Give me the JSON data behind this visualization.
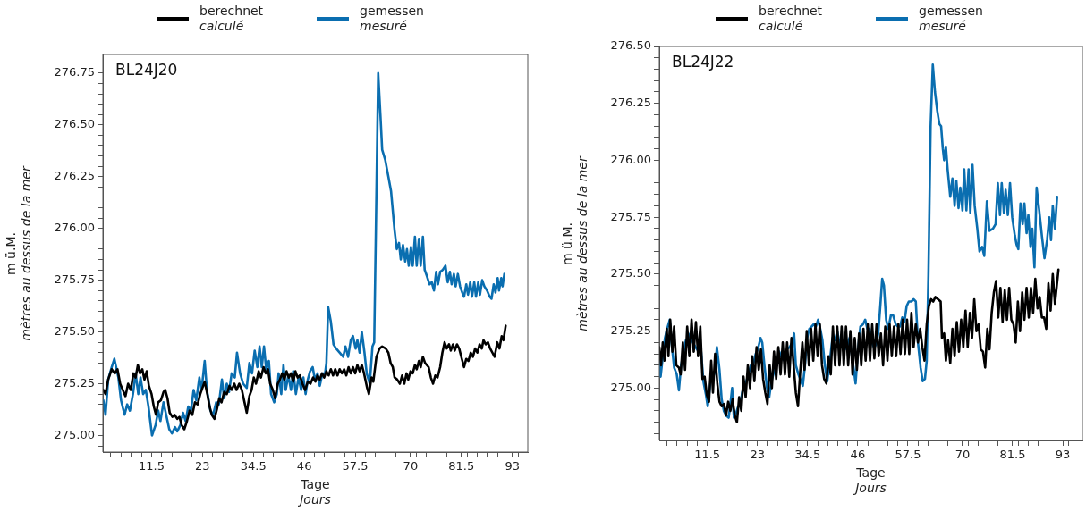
{
  "chart_data": [
    {
      "type": "line",
      "title": "BL24J20",
      "xlabel": "Tage\nJours",
      "ylabel": "m ü.M.\nmètres au dessus de la mer",
      "legend": "top",
      "grid": false,
      "marker": "none",
      "line_style": "solid",
      "xlim": [
        0.5,
        96.5
      ],
      "ylim": [
        274.92,
        276.84
      ],
      "xticks": [
        {
          "value": 2.3,
          "label": null
        },
        {
          "value": 4.6,
          "label": null
        },
        {
          "value": 6.9,
          "label": null
        },
        {
          "value": 9.2,
          "label": null
        },
        11.5,
        {
          "value": 13.8,
          "label": null
        },
        {
          "value": 16.1,
          "label": null
        },
        {
          "value": 18.4,
          "label": null
        },
        {
          "value": 20.7,
          "label": null
        },
        23,
        {
          "value": 25.3,
          "label": null
        },
        {
          "value": 27.6,
          "label": null
        },
        {
          "value": 29.9,
          "label": null
        },
        {
          "value": 32.2,
          "label": null
        },
        34.5,
        {
          "value": 36.8,
          "label": null
        },
        {
          "value": 39.1,
          "label": null
        },
        {
          "value": 41.4,
          "label": null
        },
        {
          "value": 43.7,
          "label": null
        },
        46,
        {
          "value": 48.3,
          "label": null
        },
        {
          "value": 50.6,
          "label": null
        },
        {
          "value": 52.9,
          "label": null
        },
        {
          "value": 55.2,
          "label": null
        },
        57.5,
        {
          "value": 59.8,
          "label": null
        },
        {
          "value": 62.1,
          "label": null
        },
        {
          "value": 64.4,
          "label": null
        },
        {
          "value": 66.7,
          "label": null
        },
        70,
        {
          "value": 71.3,
          "label": null
        },
        {
          "value": 73.6,
          "label": null
        },
        {
          "value": 75.9,
          "label": null
        },
        {
          "value": 78.2,
          "label": null
        },
        81.5,
        {
          "value": 82.8,
          "label": null
        },
        {
          "value": 85.1,
          "label": null
        },
        {
          "value": 87.4,
          "label": null
        },
        {
          "value": 89.7,
          "label": null
        },
        93,
        {
          "value": 94.3,
          "label": null
        }
      ],
      "yticks": [
        {
          "value": 274.95,
          "label": null
        },
        {
          "value": 275,
          "label": "275.00"
        },
        {
          "value": 275.05,
          "label": null
        },
        {
          "value": 275.1,
          "label": null
        },
        {
          "value": 275.15,
          "label": null
        },
        {
          "value": 275.2,
          "label": null
        },
        {
          "value": 275.25,
          "label": "275.25"
        },
        {
          "value": 275.3,
          "label": null
        },
        {
          "value": 275.35,
          "label": null
        },
        {
          "value": 275.4,
          "label": null
        },
        {
          "value": 275.45,
          "label": null
        },
        {
          "value": 275.5,
          "label": "275.50"
        },
        {
          "value": 275.55,
          "label": null
        },
        {
          "value": 275.6,
          "label": null
        },
        {
          "value": 275.65,
          "label": null
        },
        {
          "value": 275.7,
          "label": null
        },
        {
          "value": 275.75,
          "label": "275.75"
        },
        {
          "value": 275.8,
          "label": null
        },
        {
          "value": 275.85,
          "label": null
        },
        {
          "value": 275.9,
          "label": null
        },
        {
          "value": 275.95,
          "label": null
        },
        {
          "value": 276,
          "label": "276.00"
        },
        {
          "value": 276.05,
          "label": null
        },
        {
          "value": 276.1,
          "label": null
        },
        {
          "value": 276.15,
          "label": null
        },
        {
          "value": 276.2,
          "label": null
        },
        {
          "value": 276.25,
          "label": "276.25"
        },
        {
          "value": 276.3,
          "label": null
        },
        {
          "value": 276.35,
          "label": null
        },
        {
          "value": 276.4,
          "label": null
        },
        {
          "value": 276.45,
          "label": null
        },
        {
          "value": 276.5,
          "label": "276.50"
        },
        {
          "value": 276.55,
          "label": null
        },
        {
          "value": 276.6,
          "label": null
        },
        {
          "value": 276.65,
          "label": null
        },
        {
          "value": 276.7,
          "label": null
        },
        {
          "value": 276.75,
          "label": "276.75"
        },
        {
          "value": 276.8,
          "label": null
        }
      ],
      "series": [
        {
          "name": "berechnet\ncalculé",
          "color": "#000000",
          "x": [
            0.6,
            1.1,
            1.7,
            2.5,
            3.2,
            3.8,
            4.4,
            5.0,
            5.6,
            6.2,
            6.8,
            7.4,
            7.9,
            8.4,
            8.9,
            9.4,
            9.9,
            10.4,
            10.9,
            11.5,
            12.0,
            12.5,
            13.0,
            13.6,
            14.2,
            14.6,
            15.1,
            15.6,
            16.2,
            16.7,
            17.3,
            17.8,
            18.3,
            18.9,
            19.5,
            20.1,
            20.7,
            21.3,
            21.9,
            22.5,
            23.0,
            23.5,
            24.1,
            24.6,
            25.1,
            25.7,
            26.3,
            26.8,
            27.3,
            27.9,
            28.5,
            29.1,
            29.6,
            30.2,
            30.7,
            31.3,
            31.9,
            32.5,
            33.0,
            33.6,
            34.1,
            34.6,
            35.1,
            35.7,
            36.2,
            36.8,
            37.3,
            37.8,
            38.3,
            38.9,
            39.4,
            40.0,
            40.5,
            41.0,
            41.5,
            42.0,
            42.5,
            43.0,
            43.5,
            44.0,
            44.5,
            45.0,
            45.6,
            46.2,
            46.8,
            47.4,
            48.0,
            48.5,
            49.0,
            49.5,
            50.0,
            50.5,
            51.0,
            51.5,
            52.0,
            52.5,
            53.0,
            53.5,
            54.0,
            54.5,
            55.0,
            55.5,
            56.0,
            56.5,
            57.0,
            57.5,
            58.0,
            58.5,
            59.0,
            59.5,
            60.2,
            60.6,
            61.2,
            61.6,
            62.3,
            63.0,
            63.6,
            64.4,
            65.0,
            65.5,
            66.0,
            66.4,
            67.0,
            67.6,
            68.1,
            68.6,
            69.1,
            69.5,
            70.0,
            70.5,
            71.0,
            71.4,
            71.9,
            72.3,
            72.8,
            73.3,
            74.1,
            74.6,
            75.1,
            75.6,
            76.1,
            76.7,
            77.2,
            77.7,
            78.2,
            78.7,
            79.1,
            79.6,
            80.0,
            80.5,
            81.0,
            81.6,
            82.1,
            82.6,
            83.1,
            83.6,
            84.1,
            84.6,
            85.1,
            85.6,
            86.1,
            86.5,
            87.0,
            87.5,
            88.0,
            88.5,
            89.0,
            89.6,
            90.1,
            90.6,
            91.0,
            91.5
          ],
          "values": [
            275.22,
            275.2,
            275.27,
            275.32,
            275.3,
            275.32,
            275.25,
            275.22,
            275.19,
            275.25,
            275.22,
            275.3,
            275.28,
            275.34,
            275.3,
            275.32,
            275.27,
            275.31,
            275.24,
            275.2,
            275.14,
            275.1,
            275.16,
            275.17,
            275.21,
            275.22,
            275.18,
            275.11,
            275.09,
            275.1,
            275.08,
            275.09,
            275.05,
            275.03,
            275.07,
            275.12,
            275.1,
            275.16,
            275.15,
            275.2,
            275.23,
            275.26,
            275.2,
            275.14,
            275.1,
            275.08,
            275.13,
            275.18,
            275.16,
            275.21,
            275.2,
            275.24,
            275.22,
            275.25,
            275.22,
            275.25,
            275.22,
            275.16,
            275.11,
            275.19,
            275.22,
            275.28,
            275.25,
            275.31,
            275.28,
            275.33,
            275.3,
            275.32,
            275.25,
            275.22,
            275.18,
            275.25,
            275.27,
            275.3,
            275.27,
            275.31,
            275.28,
            275.3,
            275.26,
            275.31,
            275.28,
            275.29,
            275.25,
            275.22,
            275.26,
            275.25,
            275.28,
            275.26,
            275.29,
            275.27,
            275.3,
            275.28,
            275.31,
            275.29,
            275.32,
            275.29,
            275.32,
            275.29,
            275.32,
            275.3,
            275.32,
            275.29,
            275.33,
            275.3,
            275.33,
            275.3,
            275.34,
            275.31,
            275.34,
            275.3,
            275.23,
            275.2,
            275.28,
            275.26,
            275.38,
            275.42,
            275.43,
            275.42,
            275.4,
            275.35,
            275.33,
            275.28,
            275.27,
            275.25,
            275.29,
            275.25,
            275.3,
            275.27,
            275.31,
            275.3,
            275.34,
            275.32,
            275.36,
            275.33,
            275.38,
            275.35,
            275.33,
            275.28,
            275.25,
            275.29,
            275.28,
            275.33,
            275.4,
            275.45,
            275.42,
            275.44,
            275.41,
            275.44,
            275.41,
            275.44,
            275.42,
            275.37,
            275.33,
            275.37,
            275.36,
            275.4,
            275.38,
            275.42,
            275.4,
            275.44,
            275.42,
            275.46,
            275.44,
            275.45,
            275.42,
            275.4,
            275.38,
            275.45,
            275.42,
            275.48,
            275.46,
            275.53
          ]
        },
        {
          "name": "gemessen\nmesuré",
          "color": "#0a6eb0",
          "x": [
            0.6,
            1.1,
            1.7,
            2.5,
            3.1,
            4.0,
            4.6,
            5.4,
            6.0,
            6.6,
            7.3,
            7.9,
            8.5,
            9.0,
            9.6,
            10.2,
            10.8,
            11.6,
            12.4,
            13.0,
            13.5,
            14.2,
            14.8,
            15.5,
            16.1,
            16.8,
            17.3,
            18.0,
            18.6,
            19.2,
            19.8,
            20.4,
            21.0,
            21.6,
            22.3,
            22.8,
            23.5,
            24.0,
            24.8,
            25.4,
            26.1,
            26.7,
            27.4,
            27.9,
            28.5,
            29.0,
            29.6,
            30.3,
            30.8,
            31.5,
            32.2,
            33.0,
            33.6,
            34.2,
            34.8,
            35.4,
            35.9,
            36.4,
            36.9,
            37.4,
            38.0,
            38.5,
            39.2,
            39.8,
            40.2,
            40.8,
            41.3,
            41.8,
            42.4,
            43.0,
            43.5,
            44.1,
            44.7,
            45.3,
            45.8,
            46.3,
            46.8,
            47.3,
            47.9,
            48.4,
            49.0,
            49.5,
            50.1,
            50.7,
            51.0,
            51.4,
            52.0,
            52.6,
            53.2,
            54.8,
            55.3,
            55.9,
            56.5,
            57.0,
            57.6,
            58.0,
            58.5,
            59.0,
            59.6,
            60.1,
            60.8,
            61.4,
            61.8,
            62.7,
            63.2,
            63.6,
            64.3,
            65.0,
            65.6,
            66.4,
            66.9,
            67.4,
            67.8,
            68.3,
            68.8,
            69.2,
            69.6,
            70.1,
            70.5,
            71.0,
            71.4,
            71.9,
            72.3,
            72.8,
            73.2,
            73.7,
            74.3,
            74.8,
            75.3,
            75.8,
            76.2,
            76.7,
            77.3,
            77.9,
            78.4,
            78.9,
            79.3,
            79.8,
            80.2,
            80.7,
            81.2,
            81.7,
            82.1,
            82.6,
            83.0,
            83.5,
            83.9,
            84.4,
            84.8,
            85.3,
            85.7,
            86.2,
            86.7,
            87.3,
            87.9,
            88.3,
            88.8,
            89.2,
            89.7,
            90.0,
            90.5,
            90.8,
            91.2
          ],
          "values": [
            275.17,
            275.1,
            275.27,
            275.33,
            275.37,
            275.28,
            275.17,
            275.1,
            275.15,
            275.12,
            275.2,
            275.3,
            275.2,
            275.28,
            275.2,
            275.22,
            275.14,
            275.0,
            275.05,
            275.12,
            275.07,
            275.16,
            275.1,
            275.03,
            275.01,
            275.04,
            275.02,
            275.05,
            275.11,
            275.07,
            275.14,
            275.12,
            275.22,
            275.17,
            275.28,
            275.22,
            275.36,
            275.22,
            275.12,
            275.1,
            275.16,
            275.15,
            275.27,
            275.18,
            275.25,
            275.21,
            275.3,
            275.28,
            275.4,
            275.3,
            275.25,
            275.23,
            275.35,
            275.3,
            275.41,
            275.33,
            275.43,
            275.33,
            275.43,
            275.32,
            275.36,
            275.2,
            275.16,
            275.2,
            275.3,
            275.2,
            275.34,
            275.22,
            275.29,
            275.22,
            275.31,
            275.2,
            275.28,
            275.22,
            275.28,
            275.2,
            275.27,
            275.31,
            275.33,
            275.27,
            275.3,
            275.24,
            275.3,
            275.3,
            275.35,
            275.62,
            275.55,
            275.44,
            275.42,
            275.38,
            275.43,
            275.38,
            275.46,
            275.48,
            275.42,
            275.46,
            275.4,
            275.5,
            275.4,
            275.3,
            275.25,
            275.43,
            275.45,
            276.75,
            276.55,
            276.38,
            276.33,
            276.25,
            276.18,
            275.99,
            275.9,
            275.93,
            275.85,
            275.92,
            275.84,
            275.9,
            275.82,
            275.91,
            275.82,
            275.96,
            275.82,
            275.95,
            275.82,
            275.96,
            275.8,
            275.77,
            275.73,
            275.74,
            275.7,
            275.79,
            275.73,
            275.79,
            275.8,
            275.82,
            275.74,
            275.79,
            275.73,
            275.78,
            275.72,
            275.78,
            275.72,
            275.69,
            275.67,
            275.73,
            275.68,
            275.74,
            275.67,
            275.74,
            275.67,
            275.74,
            275.68,
            275.75,
            275.72,
            275.7,
            275.67,
            275.66,
            275.73,
            275.69,
            275.76,
            275.7,
            275.76,
            275.72,
            275.78
          ]
        }
      ]
    },
    {
      "type": "line",
      "title": "BL24J22",
      "xlabel": "Tage\nJours",
      "ylabel": "m ü.M.\nmètres au dessus de la mer",
      "legend": "top",
      "grid": false,
      "marker": "none",
      "line_style": "solid",
      "xlim": [
        0.5,
        97.5
      ],
      "ylim": [
        274.77,
        276.5
      ],
      "xticks": [
        {
          "value": 2.3,
          "label": null
        },
        {
          "value": 4.6,
          "label": null
        },
        {
          "value": 6.9,
          "label": null
        },
        {
          "value": 9.2,
          "label": null
        },
        11.5,
        {
          "value": 13.8,
          "label": null
        },
        {
          "value": 16.1,
          "label": null
        },
        {
          "value": 18.4,
          "label": null
        },
        {
          "value": 20.7,
          "label": null
        },
        23,
        {
          "value": 25.3,
          "label": null
        },
        {
          "value": 27.6,
          "label": null
        },
        {
          "value": 29.9,
          "label": null
        },
        {
          "value": 32.2,
          "label": null
        },
        34.5,
        {
          "value": 36.8,
          "label": null
        },
        {
          "value": 39.1,
          "label": null
        },
        {
          "value": 41.4,
          "label": null
        },
        {
          "value": 43.7,
          "label": null
        },
        46,
        {
          "value": 48.3,
          "label": null
        },
        {
          "value": 50.6,
          "label": null
        },
        {
          "value": 52.9,
          "label": null
        },
        {
          "value": 55.2,
          "label": null
        },
        57.5,
        {
          "value": 59.8,
          "label": null
        },
        {
          "value": 62.1,
          "label": null
        },
        {
          "value": 64.4,
          "label": null
        },
        {
          "value": 66.7,
          "label": null
        },
        70,
        {
          "value": 71.3,
          "label": null
        },
        {
          "value": 73.6,
          "label": null
        },
        {
          "value": 75.9,
          "label": null
        },
        {
          "value": 78.2,
          "label": null
        },
        81.5,
        {
          "value": 82.8,
          "label": null
        },
        {
          "value": 85.1,
          "label": null
        },
        {
          "value": 87.4,
          "label": null
        },
        {
          "value": 89.7,
          "label": null
        },
        93,
        {
          "value": 94.3,
          "label": null
        }
      ],
      "yticks": [
        {
          "value": 274.8,
          "label": null
        },
        {
          "value": 274.85,
          "label": null
        },
        {
          "value": 274.9,
          "label": null
        },
        {
          "value": 274.95,
          "label": null
        },
        {
          "value": 275,
          "label": "275.00"
        },
        {
          "value": 275.05,
          "label": null
        },
        {
          "value": 275.1,
          "label": null
        },
        {
          "value": 275.15,
          "label": null
        },
        {
          "value": 275.2,
          "label": null
        },
        {
          "value": 275.25,
          "label": "275.25"
        },
        {
          "value": 275.3,
          "label": null
        },
        {
          "value": 275.35,
          "label": null
        },
        {
          "value": 275.4,
          "label": null
        },
        {
          "value": 275.45,
          "label": null
        },
        {
          "value": 275.5,
          "label": "275.50"
        },
        {
          "value": 275.55,
          "label": null
        },
        {
          "value": 275.6,
          "label": null
        },
        {
          "value": 275.65,
          "label": null
        },
        {
          "value": 275.7,
          "label": null
        },
        {
          "value": 275.75,
          "label": "275.75"
        },
        {
          "value": 275.8,
          "label": null
        },
        {
          "value": 275.85,
          "label": null
        },
        {
          "value": 275.9,
          "label": null
        },
        {
          "value": 275.95,
          "label": null
        },
        {
          "value": 276,
          "label": "276.00"
        },
        {
          "value": 276.05,
          "label": null
        },
        {
          "value": 276.1,
          "label": null
        },
        {
          "value": 276.15,
          "label": null
        },
        {
          "value": 276.2,
          "label": null
        },
        {
          "value": 276.25,
          "label": "276.25"
        },
        {
          "value": 276.3,
          "label": null
        },
        {
          "value": 276.35,
          "label": null
        },
        {
          "value": 276.4,
          "label": null
        },
        {
          "value": 276.45,
          "label": null
        },
        {
          "value": 276.5,
          "label": "276.50"
        }
      ],
      "series": [
        {
          "name": "berechnet\ncalculé",
          "color": "#000000",
          "x": [
            0.5,
            0.9,
            1.3,
            1.7,
            2.2,
            2.6,
            3.0,
            3.5,
            3.9,
            4.4,
            5.0,
            5.4,
            5.9,
            6.4,
            6.9,
            7.4,
            7.9,
            8.4,
            8.9,
            9.4,
            9.9,
            10.4,
            10.9,
            11.4,
            11.9,
            12.4,
            12.8,
            13.3,
            13.8,
            14.3,
            14.8,
            15.3,
            15.8,
            16.3,
            16.8,
            17.3,
            17.8,
            18.3,
            18.8,
            19.3,
            19.8,
            20.3,
            20.8,
            21.3,
            21.8,
            22.3,
            22.8,
            23.3,
            23.8,
            24.3,
            24.8,
            25.3,
            25.8,
            26.3,
            26.8,
            27.3,
            27.8,
            28.3,
            28.8,
            29.3,
            29.8,
            30.3,
            30.8,
            31.3,
            31.8,
            32.3,
            32.8,
            33.3,
            33.8,
            34.3,
            34.8,
            35.3,
            35.8,
            36.3,
            36.8,
            37.3,
            37.8,
            38.3,
            38.8,
            39.3,
            39.8,
            40.3,
            40.8,
            41.3,
            41.8,
            42.3,
            42.8,
            43.3,
            43.8,
            44.3,
            44.8,
            45.3,
            45.8,
            46.3,
            46.8,
            47.3,
            47.8,
            48.3,
            48.8,
            49.3,
            49.8,
            50.3,
            50.8,
            51.3,
            51.8,
            52.3,
            52.8,
            53.3,
            53.8,
            54.3,
            54.8,
            55.3,
            55.8,
            56.3,
            56.8,
            57.3,
            57.8,
            58.3,
            58.8,
            59.3,
            59.8,
            60.3,
            60.8,
            61.3,
            61.8,
            62.3,
            62.8,
            63.3,
            63.8,
            64.4,
            65.0,
            65.3,
            65.8,
            66.2,
            66.7,
            67.2,
            67.7,
            68.2,
            68.7,
            69.2,
            69.7,
            70.2,
            70.7,
            71.2,
            71.7,
            72.2,
            72.7,
            73.2,
            73.7,
            74.2,
            74.7,
            75.2,
            75.7,
            76.2,
            76.7,
            77.2,
            77.7,
            78.2,
            78.7,
            79.2,
            79.7,
            80.2,
            80.7,
            81.2,
            81.7,
            82.2,
            82.7,
            83.2,
            83.7,
            84.2,
            84.7,
            85.2,
            85.7,
            86.2,
            86.7,
            87.2,
            87.7,
            88.2,
            88.7,
            89.2,
            89.7,
            90.2,
            90.7,
            91.2,
            92.0
          ],
          "values": [
            275.18,
            275.1,
            275.2,
            275.12,
            275.26,
            275.14,
            275.3,
            275.16,
            275.27,
            275.1,
            275.09,
            275.06,
            275.2,
            275.08,
            275.27,
            275.14,
            275.3,
            275.16,
            275.29,
            275.14,
            275.27,
            275.04,
            275.05,
            274.97,
            274.94,
            275.12,
            274.98,
            275.15,
            275.02,
            274.94,
            274.92,
            274.93,
            274.88,
            274.94,
            274.9,
            274.95,
            274.88,
            274.85,
            274.96,
            274.9,
            275.05,
            274.96,
            275.1,
            275.0,
            275.14,
            275.03,
            275.18,
            275.08,
            275.17,
            275.04,
            274.98,
            274.93,
            275.1,
            275.0,
            275.16,
            275.04,
            275.18,
            275.06,
            275.2,
            275.06,
            275.2,
            275.05,
            275.22,
            275.1,
            274.98,
            274.92,
            275.07,
            275.2,
            275.08,
            275.25,
            275.1,
            275.26,
            275.12,
            275.28,
            275.14,
            275.28,
            275.1,
            275.04,
            275.02,
            275.14,
            275.06,
            275.27,
            275.1,
            275.27,
            275.1,
            275.27,
            275.1,
            275.27,
            275.1,
            275.25,
            275.06,
            275.22,
            275.08,
            275.24,
            275.1,
            275.26,
            275.12,
            275.28,
            275.12,
            275.28,
            275.13,
            275.28,
            275.14,
            275.24,
            275.1,
            275.27,
            275.12,
            275.28,
            275.14,
            275.27,
            275.14,
            275.28,
            275.15,
            275.3,
            275.15,
            275.3,
            275.15,
            275.33,
            275.18,
            275.28,
            275.2,
            275.26,
            275.18,
            275.12,
            275.28,
            275.36,
            275.39,
            275.38,
            275.4,
            275.39,
            275.38,
            275.22,
            275.24,
            275.12,
            275.21,
            275.11,
            275.26,
            275.14,
            275.29,
            275.16,
            275.3,
            275.18,
            275.34,
            275.18,
            275.33,
            275.22,
            275.39,
            275.25,
            275.28,
            275.17,
            275.16,
            275.09,
            275.26,
            275.17,
            275.33,
            275.42,
            275.47,
            275.31,
            275.44,
            275.29,
            275.43,
            275.3,
            275.44,
            275.3,
            275.28,
            275.2,
            275.38,
            275.25,
            275.42,
            275.3,
            275.44,
            275.31,
            275.44,
            275.33,
            275.48,
            275.35,
            275.4,
            275.31,
            275.31,
            275.26,
            275.46,
            275.34,
            275.5,
            275.37,
            275.52
          ]
        },
        {
          "name": "gemessen\nmesuré",
          "color": "#0a6eb0",
          "x": [
            0.5,
            0.8,
            1.2,
            1.8,
            2.3,
            2.9,
            3.3,
            3.9,
            4.5,
            5.0,
            5.5,
            6.1,
            6.6,
            7.1,
            7.6,
            8.2,
            8.8,
            9.5,
            10.1,
            10.6,
            11.2,
            11.6,
            12.2,
            12.8,
            13.3,
            13.7,
            14.3,
            14.8,
            15.3,
            15.8,
            16.4,
            16.8,
            17.2,
            17.6,
            18.1,
            18.6,
            19.0,
            19.5,
            20.8,
            21.5,
            22.1,
            22.6,
            23.1,
            23.7,
            24.1,
            24.6,
            25.2,
            25.7,
            26.2,
            26.8,
            27.4,
            28.0,
            28.6,
            29.2,
            29.8,
            30.4,
            31.0,
            31.4,
            31.8,
            32.4,
            33.0,
            33.4,
            33.9,
            34.4,
            34.9,
            35.4,
            35.9,
            36.4,
            36.9,
            37.4,
            37.9,
            38.4,
            39.0,
            39.6,
            40.2,
            40.8,
            41.3,
            41.8,
            42.4,
            43.0,
            43.6,
            44.1,
            44.6,
            45.1,
            45.5,
            46.1,
            46.6,
            47.2,
            47.7,
            48.2,
            48.7,
            49.2,
            49.7,
            50.2,
            50.7,
            51.2,
            51.6,
            52.0,
            52.5,
            53.0,
            53.6,
            54.1,
            54.7,
            55.2,
            55.7,
            56.2,
            56.7,
            57.2,
            57.7,
            58.3,
            58.8,
            59.3,
            59.8,
            60.4,
            60.9,
            61.4,
            61.8,
            62.2,
            62.7,
            63.2,
            63.7,
            64.2,
            64.7,
            65.1,
            65.5,
            65.8,
            66.2,
            66.6,
            67.2,
            67.7,
            68.2,
            68.6,
            69.1,
            69.5,
            70.0,
            70.4,
            70.9,
            71.4,
            71.8,
            72.3,
            72.8,
            73.4,
            73.9,
            74.5,
            75.0,
            75.6,
            76.2,
            77.0,
            77.6,
            78.1,
            78.6,
            79.0,
            79.5,
            79.9,
            80.4,
            80.9,
            81.4,
            82.0,
            82.4,
            82.8,
            83.3,
            83.8,
            84.2,
            84.7,
            85.1,
            85.6,
            86.0,
            86.5,
            87.0,
            87.6,
            88.2,
            88.8,
            89.4,
            89.9,
            90.3,
            90.7,
            91.2,
            91.7
          ],
          "values": [
            275.12,
            275.05,
            275.12,
            275.22,
            275.26,
            275.3,
            275.2,
            275.09,
            275.06,
            274.99,
            275.1,
            275.16,
            275.21,
            275.22,
            275.24,
            275.2,
            275.18,
            275.16,
            275.16,
            275.03,
            274.97,
            274.92,
            275.02,
            275.05,
            275.07,
            275.18,
            275.08,
            274.95,
            274.9,
            274.88,
            274.87,
            274.93,
            275.0,
            274.87,
            274.89,
            274.92,
            274.92,
            274.98,
            275.05,
            275.1,
            275.11,
            275.15,
            275.17,
            275.22,
            275.2,
            275.1,
            275.0,
            274.96,
            275.03,
            275.07,
            275.11,
            275.16,
            275.13,
            275.12,
            275.17,
            275.18,
            275.2,
            275.24,
            275.1,
            275.06,
            275.03,
            275.01,
            275.1,
            275.22,
            275.26,
            275.27,
            275.28,
            275.27,
            275.3,
            275.26,
            275.21,
            275.11,
            275.03,
            275.12,
            275.22,
            275.21,
            275.25,
            275.2,
            275.18,
            275.17,
            275.18,
            275.22,
            275.15,
            275.08,
            275.02,
            275.18,
            275.27,
            275.28,
            275.3,
            275.26,
            275.26,
            275.2,
            275.18,
            275.19,
            275.24,
            275.37,
            275.48,
            275.45,
            275.3,
            275.26,
            275.32,
            275.32,
            275.28,
            275.27,
            275.27,
            275.31,
            275.29,
            275.36,
            275.38,
            275.38,
            275.39,
            275.38,
            275.2,
            275.09,
            275.03,
            275.04,
            275.12,
            275.5,
            276.15,
            276.42,
            276.3,
            276.22,
            276.16,
            276.15,
            276.05,
            276.0,
            276.06,
            275.96,
            275.84,
            275.92,
            275.8,
            275.91,
            275.79,
            275.88,
            275.78,
            275.96,
            275.78,
            275.96,
            275.77,
            275.98,
            275.8,
            275.7,
            275.6,
            275.62,
            275.58,
            275.82,
            275.69,
            275.7,
            275.72,
            275.9,
            275.76,
            275.9,
            275.77,
            275.87,
            275.76,
            275.9,
            275.75,
            275.67,
            275.63,
            275.61,
            275.81,
            275.72,
            275.81,
            275.68,
            275.76,
            275.62,
            275.7,
            275.53,
            275.88,
            275.78,
            275.67,
            275.57,
            275.65,
            275.75,
            275.65,
            275.8,
            275.7,
            275.84
          ]
        }
      ]
    }
  ]
}
